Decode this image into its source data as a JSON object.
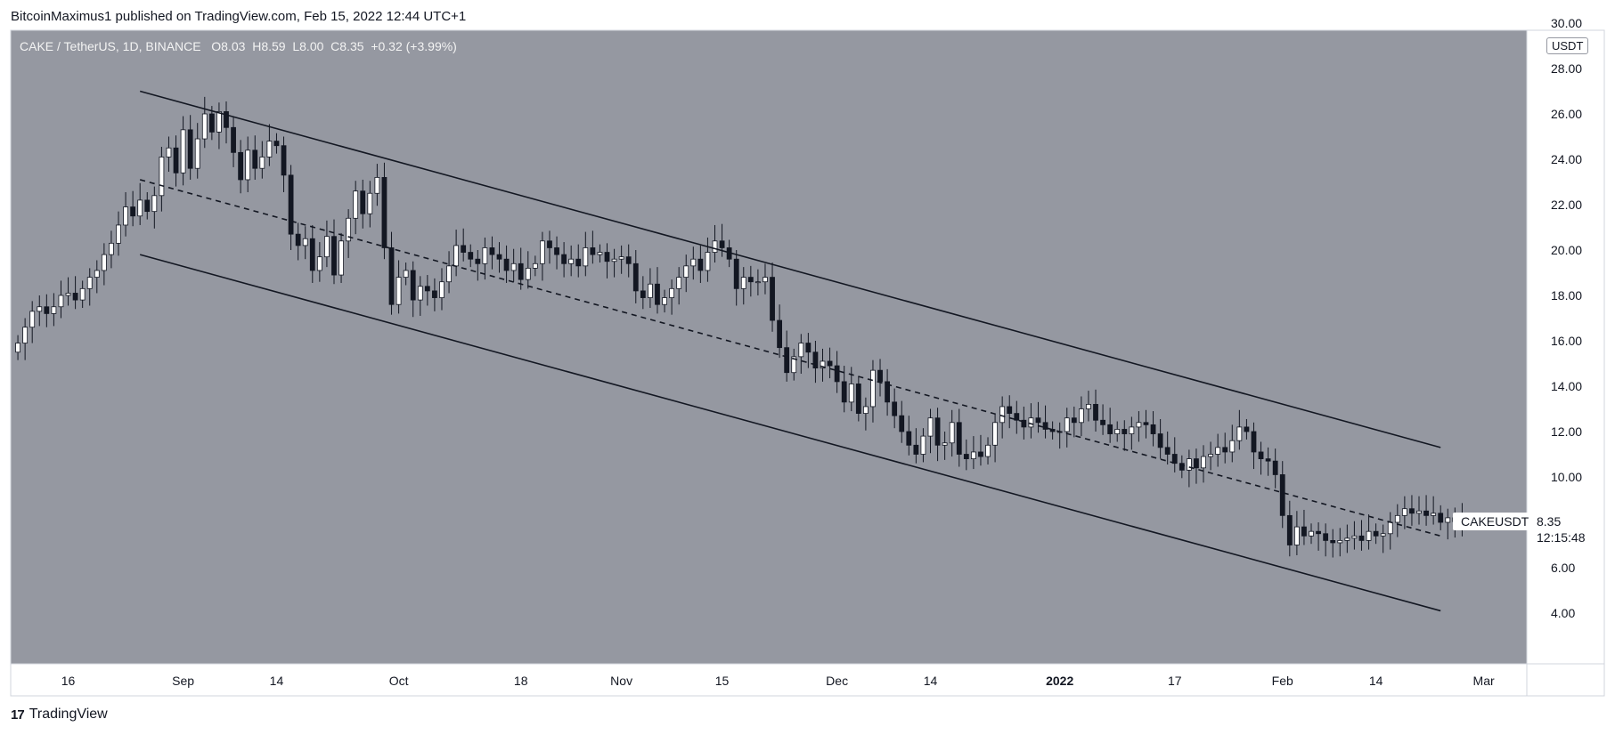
{
  "header": {
    "attribution": "BitcoinMaximus1 published on TradingView.com, Feb 15, 2022 12:44 UTC+1"
  },
  "legend": {
    "symbol": "CAKE / TetherUS, 1D, BINANCE",
    "o_label": "O",
    "o_value": "8.03",
    "h_label": "H",
    "h_value": "8.59",
    "l_label": "L",
    "l_value": "8.00",
    "c_label": "C",
    "c_value": "8.35",
    "change": "+0.32 (+3.99%)"
  },
  "price_axis": {
    "unit": "USDT"
  },
  "last_price": {
    "ticker": "CAKEUSDT",
    "price": "8.35",
    "countdown": "12:15:48"
  },
  "footer": {
    "brand": "TradingView",
    "logo_glyph": "17"
  },
  "colors": {
    "plot_bg": "#9598a1",
    "axis_bg": "#ffffff",
    "candle_up": "#ffffff",
    "candle_down": "#131722",
    "line": "#131722"
  },
  "chart_data": {
    "type": "candlestick",
    "title": "CAKE / TetherUS, 1D, BINANCE",
    "ylim": [
      2.0,
      30.0
    ],
    "y_ticks": [
      "4.00",
      "6.00",
      "10.00",
      "12.00",
      "14.00",
      "16.00",
      "18.00",
      "20.00",
      "22.00",
      "24.00",
      "26.00",
      "28.00",
      "30.00"
    ],
    "x_range": [
      "2021-08-08",
      "2022-03-07"
    ],
    "x_ticks": [
      {
        "date": "2021-08-16",
        "label": "16"
      },
      {
        "date": "2021-09-01",
        "label": "Sep"
      },
      {
        "date": "2021-09-14",
        "label": "14"
      },
      {
        "date": "2021-10-01",
        "label": "Oct"
      },
      {
        "date": "2021-10-18",
        "label": "18"
      },
      {
        "date": "2021-11-01",
        "label": "Nov"
      },
      {
        "date": "2021-11-15",
        "label": "15"
      },
      {
        "date": "2021-12-01",
        "label": "Dec"
      },
      {
        "date": "2021-12-14",
        "label": "14"
      },
      {
        "date": "2022-01-01",
        "label": "2022"
      },
      {
        "date": "2022-01-17",
        "label": "17"
      },
      {
        "date": "2022-02-01",
        "label": "Feb"
      },
      {
        "date": "2022-02-14",
        "label": "14"
      },
      {
        "date": "2022-03-01",
        "label": "Mar"
      }
    ],
    "start_date": "2021-08-09",
    "closes": [
      15.9,
      16.6,
      17.3,
      17.5,
      17.2,
      17.5,
      18.0,
      18.1,
      17.8,
      18.3,
      18.8,
      19.1,
      19.8,
      20.3,
      21.1,
      21.9,
      21.5,
      22.2,
      21.7,
      22.4,
      24.1,
      24.5,
      23.4,
      25.3,
      23.6,
      24.9,
      26.0,
      25.2,
      26.1,
      25.4,
      24.3,
      23.1,
      24.4,
      23.6,
      24.1,
      24.8,
      24.6,
      23.3,
      20.7,
      20.2,
      20.5,
      19.1,
      19.7,
      20.6,
      18.9,
      20.4,
      21.4,
      22.6,
      21.6,
      22.5,
      23.2,
      20.1,
      17.6,
      18.8,
      19.1,
      17.8,
      18.4,
      18.2,
      17.9,
      18.6,
      19.3,
      20.2,
      19.9,
      19.6,
      19.4,
      20.1,
      19.8,
      19.6,
      19.1,
      19.4,
      18.7,
      19.2,
      19.4,
      20.4,
      20.1,
      19.8,
      19.4,
      19.6,
      19.3,
      20.1,
      19.8,
      19.9,
      19.5,
      19.6,
      19.7,
      19.4,
      18.2,
      17.9,
      18.5,
      17.6,
      17.9,
      18.3,
      18.8,
      19.3,
      19.6,
      19.1,
      19.9,
      20.4,
      20.1,
      19.6,
      18.3,
      18.8,
      18.6,
      18.6,
      18.8,
      16.9,
      15.7,
      14.6,
      15.3,
      15.9,
      15.5,
      14.8,
      15.1,
      14.9,
      14.2,
      13.3,
      14.1,
      12.8,
      13.1,
      14.7,
      14.2,
      13.3,
      12.7,
      12.0,
      11.4,
      11.0,
      11.8,
      12.6,
      11.4,
      11.5,
      12.4,
      11.0,
      10.8,
      11.1,
      10.9,
      11.4,
      12.4,
      13.1,
      12.8,
      12.5,
      12.2,
      12.6,
      12.4,
      12.1,
      12.0,
      12.0,
      12.6,
      12.4,
      13.0,
      13.2,
      12.5,
      12.3,
      11.9,
      12.1,
      11.9,
      12.2,
      12.4,
      12.3,
      11.9,
      11.3,
      11.0,
      10.6,
      10.3,
      10.8,
      10.4,
      10.9,
      11.0,
      11.3,
      11.1,
      11.6,
      12.2,
      12.0,
      11.1,
      10.8,
      10.7,
      10.1,
      8.3,
      7.0,
      7.8,
      7.4,
      7.6,
      7.5,
      7.2,
      7.1,
      7.2,
      7.3,
      7.4,
      7.2,
      7.6,
      7.4,
      7.5,
      8.0,
      8.3,
      8.6,
      8.4,
      8.5,
      8.3,
      8.4,
      8.0,
      8.2,
      8.03,
      8.35
    ]
  }
}
